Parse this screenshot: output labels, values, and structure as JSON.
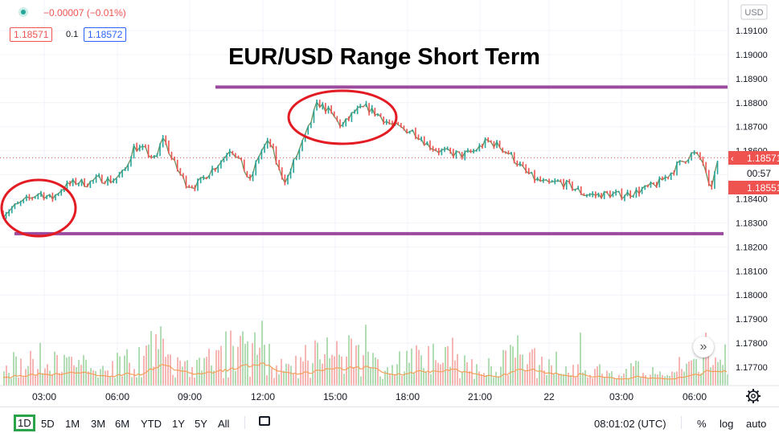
{
  "header": {
    "change_text": "−0.00007 (−0.01%)",
    "bid": "1.18571",
    "spread": "0.1",
    "ask": "1.18572"
  },
  "annotation": {
    "title": "EUR/USD Range Short Term"
  },
  "price_axis": {
    "currency": "USD",
    "labels": [
      "1.19100",
      "1.19000",
      "1.18900",
      "1.18800",
      "1.18700",
      "1.18600",
      "1.18500",
      "1.18400",
      "1.18300",
      "1.18200",
      "1.18100",
      "1.18000",
      "1.17900",
      "1.17800",
      "1.17700"
    ],
    "last_price_label": "1.18571",
    "countdown_label": "00:57",
    "prev_label": "1.18551"
  },
  "time_axis": {
    "labels": [
      "03:00",
      "06:00",
      "09:00",
      "12:00",
      "15:00",
      "18:00",
      "21:00",
      "22",
      "03:00",
      "06:00"
    ]
  },
  "bottom_toolbar": {
    "ranges": [
      "1D",
      "5D",
      "1M",
      "3M",
      "6M",
      "YTD",
      "1Y",
      "5Y",
      "All"
    ],
    "active_range": "1D",
    "clock": "08:01:02 (UTC)",
    "percent": "%",
    "log": "log",
    "auto": "auto"
  },
  "colors": {
    "up": "#26a69a",
    "down": "#ef5350",
    "range_line": "#9b4a9e",
    "circle": "#e31b23",
    "volume_ma": "#f5a05a"
  },
  "chart_data": {
    "type": "line",
    "title": "EUR/USD Range Short Term",
    "series": [
      {
        "values": [
          [
            0,
            1.1834
          ],
          [
            0.8,
            1.18385
          ],
          [
            1.5,
            1.18425
          ],
          [
            2.0,
            1.184
          ],
          [
            2.5,
            1.1845
          ],
          [
            3.0,
            1.1847
          ],
          [
            3.5,
            1.18465
          ],
          [
            4.0,
            1.18485
          ],
          [
            4.5,
            1.18475
          ],
          [
            5.0,
            1.1851
          ],
          [
            5.4,
            1.18615
          ],
          [
            5.9,
            1.186
          ],
          [
            6.3,
            1.18555
          ],
          [
            6.6,
            1.1866
          ],
          [
            7.0,
            1.1856
          ],
          [
            7.3,
            1.18505
          ],
          [
            7.6,
            1.1846
          ],
          [
            8.0,
            1.18455
          ],
          [
            8.5,
            1.1851
          ],
          [
            9.0,
            1.18555
          ],
          [
            9.4,
            1.18615
          ],
          [
            9.8,
            1.18555
          ],
          [
            10.2,
            1.1847
          ],
          [
            10.6,
            1.1859
          ],
          [
            11.0,
            1.1864
          ],
          [
            11.4,
            1.1852
          ],
          [
            11.7,
            1.1847
          ],
          [
            12.0,
            1.1855
          ],
          [
            12.5,
            1.1866
          ],
          [
            13.0,
            1.188
          ],
          [
            13.5,
            1.1876
          ],
          [
            14.0,
            1.187
          ],
          [
            14.5,
            1.1876
          ],
          [
            15.0,
            1.1878
          ],
          [
            15.5,
            1.1875
          ],
          [
            16.0,
            1.1871
          ],
          [
            16.5,
            1.1869
          ],
          [
            17.0,
            1.1868
          ],
          [
            17.5,
            1.1863
          ],
          [
            18.0,
            1.186
          ],
          [
            18.5,
            1.1859
          ],
          [
            19.0,
            1.1858
          ],
          [
            19.5,
            1.186
          ],
          [
            20.0,
            1.1864
          ],
          [
            20.5,
            1.1862
          ],
          [
            21.0,
            1.1858
          ],
          [
            21.5,
            1.1852
          ],
          [
            22.0,
            1.1848
          ],
          [
            22.5,
            1.1846
          ],
          [
            23.0,
            1.1847
          ],
          [
            23.5,
            1.1845
          ],
          [
            24.0,
            1.1842
          ],
          [
            24.5,
            1.18415
          ],
          [
            25.0,
            1.1842
          ],
          [
            25.5,
            1.18415
          ],
          [
            26.0,
            1.18425
          ],
          [
            26.5,
            1.1844
          ],
          [
            27.0,
            1.1846
          ],
          [
            27.5,
            1.185
          ],
          [
            28.0,
            1.1855
          ],
          [
            28.5,
            1.1859
          ],
          [
            28.9,
            1.1856
          ],
          [
            29.2,
            1.1843
          ],
          [
            29.6,
            1.18571
          ]
        ]
      }
    ],
    "ylim": [
      1.1766,
      1.1922
    ],
    "range_lines": [
      1.18865,
      1.18255
    ]
  }
}
